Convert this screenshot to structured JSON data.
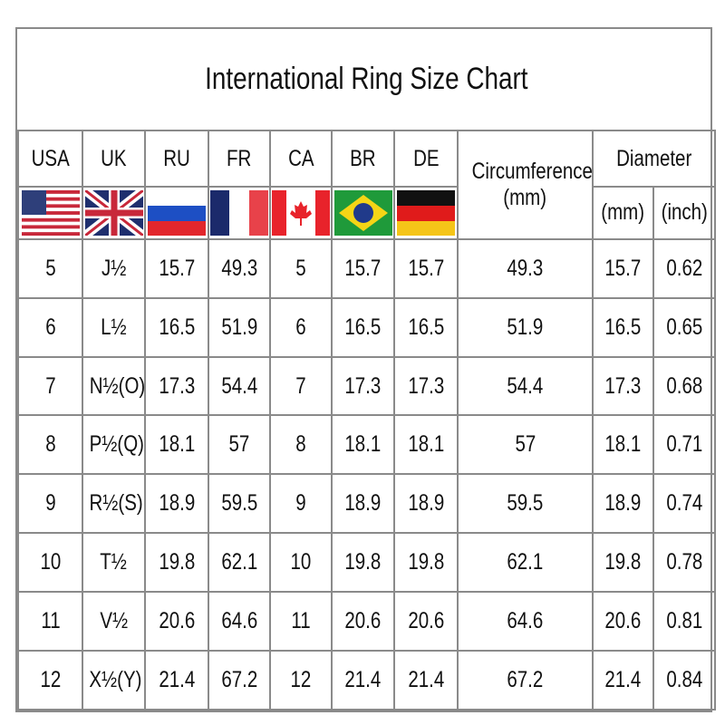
{
  "title": "International Ring Size Chart",
  "headers": {
    "countries": [
      "USA",
      "UK",
      "RU",
      "FR",
      "CA",
      "BR",
      "DE"
    ],
    "circumference": "Circumference",
    "circumference_unit": "(mm)",
    "diameter": "Diameter",
    "diameter_mm": "(mm)",
    "diameter_inch": "(inch)"
  },
  "flags": [
    "us-flag-icon",
    "uk-flag-icon",
    "russia-flag-icon",
    "france-flag-icon",
    "canada-flag-icon",
    "brazil-flag-icon",
    "germany-flag-icon"
  ],
  "rows": [
    [
      "5",
      "J½",
      "15.7",
      "49.3",
      "5",
      "15.7",
      "15.7",
      "49.3",
      "15.7",
      "0.62"
    ],
    [
      "6",
      "L½",
      "16.5",
      "51.9",
      "6",
      "16.5",
      "16.5",
      "51.9",
      "16.5",
      "0.65"
    ],
    [
      "7",
      "N½(O)",
      "17.3",
      "54.4",
      "7",
      "17.3",
      "17.3",
      "54.4",
      "17.3",
      "0.68"
    ],
    [
      "8",
      "P½(Q)",
      "18.1",
      "57",
      "8",
      "18.1",
      "18.1",
      "57",
      "18.1",
      "0.71"
    ],
    [
      "9",
      "R½(S)",
      "18.9",
      "59.5",
      "9",
      "18.9",
      "18.9",
      "59.5",
      "18.9",
      "0.74"
    ],
    [
      "10",
      "T½",
      "19.8",
      "62.1",
      "10",
      "19.8",
      "19.8",
      "62.1",
      "19.8",
      "0.78"
    ],
    [
      "11",
      "V½",
      "20.6",
      "64.6",
      "11",
      "20.6",
      "20.6",
      "64.6",
      "20.6",
      "0.81"
    ],
    [
      "12",
      "X½(Y)",
      "21.4",
      "67.2",
      "12",
      "21.4",
      "21.4",
      "67.2",
      "21.4",
      "0.84"
    ]
  ]
}
